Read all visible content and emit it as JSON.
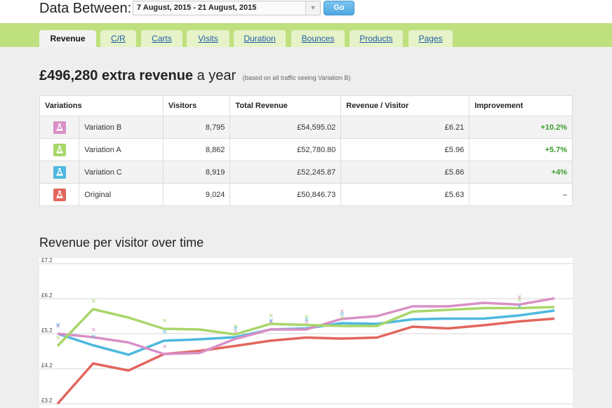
{
  "header": {
    "label": "Data Between:",
    "date_range": "7 August, 2015 - 21 August, 2015",
    "go_label": "Go",
    "dropdown_icon": "triangle-down-icon"
  },
  "tabs": [
    {
      "label": "Revenue",
      "active": true
    },
    {
      "label": "C/R",
      "active": false
    },
    {
      "label": "Carts",
      "active": false
    },
    {
      "label": "Visits",
      "active": false
    },
    {
      "label": "Duration",
      "active": false
    },
    {
      "label": "Bounces",
      "active": false
    },
    {
      "label": "Products",
      "active": false
    },
    {
      "label": "Pages",
      "active": false
    }
  ],
  "headline": {
    "bold": "£496,280 extra revenue",
    "rest": "a year",
    "note": "(based on all traffic seeing Variation B)"
  },
  "table": {
    "headers": [
      "Variations",
      "Visitors",
      "Total Revenue",
      "Revenue / Visitor",
      "Improvement"
    ],
    "rows": [
      {
        "name": "Variation B",
        "color": "#d98fc6",
        "visitors": "8,795",
        "total": "£54,595.02",
        "rpv": "£6.21",
        "improvement": "+10.2%"
      },
      {
        "name": "Variation A",
        "color": "#a8d66a",
        "visitors": "8,862",
        "total": "£52,780.80",
        "rpv": "£5.96",
        "improvement": "+5.7%"
      },
      {
        "name": "Variation C",
        "color": "#4fb8df",
        "visitors": "8,919",
        "total": "£52,245.87",
        "rpv": "£5.86",
        "improvement": "+4%"
      },
      {
        "name": "Original",
        "color": "#e2665e",
        "visitors": "9,024",
        "total": "£50,846.73",
        "rpv": "£5.63",
        "improvement": "–"
      }
    ],
    "row_icon": "flask-icon"
  },
  "chart_title": "Revenue per visitor over time",
  "chart_data": {
    "type": "line",
    "x": [
      1,
      2,
      3,
      4,
      5,
      6,
      7,
      8,
      9,
      10,
      11,
      12,
      13,
      14,
      15
    ],
    "ylim": [
      3.2,
      7.2
    ],
    "yticks": [
      "£7.2",
      "£6.2",
      "£5.2",
      "£4.2",
      "£3.2"
    ],
    "ytick_values": [
      7.2,
      6.2,
      5.2,
      4.2,
      3.2
    ],
    "grid": true,
    "series": [
      {
        "color": "#d98fc6",
        "values": [
          5.2,
          5.1,
          4.95,
          4.62,
          4.65,
          5.05,
          5.32,
          5.32,
          5.62,
          5.7,
          5.98,
          5.98,
          6.08,
          6.03,
          6.21
        ]
      },
      {
        "color": "#a8d66a",
        "values": [
          4.85,
          5.9,
          5.66,
          5.34,
          5.32,
          5.18,
          5.48,
          5.45,
          5.42,
          5.42,
          5.83,
          5.88,
          5.93,
          5.93,
          5.96
        ]
      },
      {
        "color": "#4fb8df",
        "values": [
          5.2,
          4.87,
          4.6,
          5.0,
          5.04,
          5.1,
          5.32,
          5.35,
          5.5,
          5.48,
          5.61,
          5.63,
          5.63,
          5.72,
          5.86
        ]
      },
      {
        "color": "#e2665e",
        "values": [
          3.2,
          4.35,
          4.15,
          4.62,
          4.71,
          4.85,
          5.0,
          5.09,
          5.06,
          5.09,
          5.4,
          5.35,
          5.44,
          5.55,
          5.63
        ]
      }
    ]
  }
}
